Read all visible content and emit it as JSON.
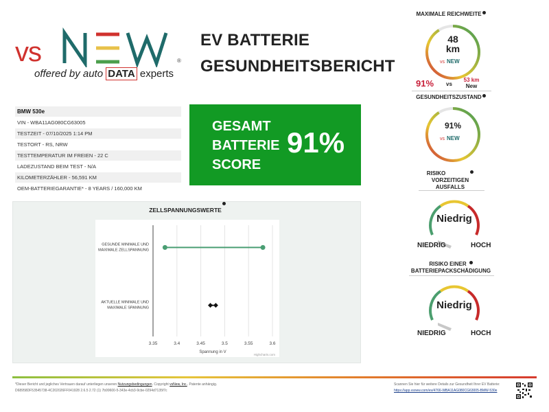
{
  "logo": {
    "vs": "vs",
    "tagline_prefix": "offered by auto",
    "tagline_data": "DATA",
    "tagline_suffix": "experts",
    "reg": "®",
    "colors": {
      "red": "#d0322e",
      "teal": "#1f6b6a",
      "yellow": "#e8c24a",
      "green": "#4b9e4b"
    }
  },
  "title": {
    "line1": "EV BATTERIE",
    "line2": "GESUNDHEITSBERICHT"
  },
  "vehicle": {
    "model": "BMW 530e",
    "rows": [
      "VIN - WBA11AG080CG63005",
      "TESTZEIT - 07/10/2025 1:14 PM",
      "TESTORT - RS, NRW",
      "TESTTEMPERATUR IM FREIEN - 22 C",
      "LADEZUSTAND BEIM TEST - N/A",
      "KILOMETERZÄHLER - 56,591 KM",
      "OEM-BATTERIEGARANTIE* - 8 YEARS / 160,000 KM"
    ]
  },
  "score": {
    "line1": "GESAMT",
    "line2": "BATTERIE",
    "line3": "SCORE",
    "value": "91%",
    "color": "#129a24"
  },
  "cell_voltage": {
    "title": "ZELLSPANNUNGSWERTE",
    "credit": "Highcharts.com"
  },
  "chart_data": {
    "type": "dumbbell",
    "title": "ZELLSPANNUNGSWERTE",
    "xlabel": "Spannung in V",
    "ylabel": "",
    "xlim": [
      3.35,
      3.6
    ],
    "x_ticks": [
      "3.35",
      "3.4",
      "3.45",
      "3.5",
      "3.55",
      "3.6"
    ],
    "categories": [
      "GESUNDE MINIMALE UND MAXIMALE ZELLSPANNUNG",
      "AKTUELLE MINIMALE UND MAXIMALE SPANNUNG"
    ],
    "category_lines": [
      [
        "GESUNDE MINIMALE UND",
        "MAXIMALE ZELLSPANNUNG"
      ],
      [
        "AKTUELLE MINIMALE UND",
        "MAXIMALE SPANNUNG"
      ]
    ],
    "series": [
      {
        "low": 3.375,
        "high": 3.58
      },
      {
        "low": 3.47,
        "high": 3.477
      }
    ],
    "colors": [
      "#4a9e73",
      "#111111"
    ],
    "grid": true
  },
  "range": {
    "title": "MAXIMALE REICHWEITE",
    "km_value": "48",
    "km_unit": "km",
    "pct": "91%",
    "vs": "vs",
    "new_km": "53 km",
    "new_label": "New",
    "fraction": 0.91
  },
  "health": {
    "title": "GESUNDHEITSZUSTAND",
    "value": "91%",
    "fraction": 0.91
  },
  "risk_early": {
    "title_line1": "RISIKO",
    "title_line2": "VORZEITIGEN",
    "title_line3": "AUSFALLS",
    "value": "Niedrig",
    "low": "NIEDRIG",
    "high": "HOCH"
  },
  "risk_pack": {
    "title_line1": "RISIKO EINER",
    "title_line2": "BATTERIEPACKSCHÄDIGUNG",
    "value": "Niedrig",
    "low": "NIEDRIG",
    "high": "HOCH"
  },
  "footer": {
    "disclaimer_pre": "*Dieser Bericht und jegliches Vertrauen darauf unterliegen unseren",
    "terms": "Nutzungsbedingungen",
    "copyright_pre": ". Copyright",
    "company": "vsNew, Inc.",
    "patent": ". Patente anhängig.",
    "code": "D68958DF53545738-4C202026FF041928 2.6.5 2.72 (1) 7b99600-5-343e-4cb3-9cbe-0294d7135f7c",
    "scan_text": "Scannen Sie hier für weitere Details zur Gesundheit Ihrer EV Batterie:",
    "scan_url": "https://app.vsnew.com/ev/4766-WBA11AG080CG63005-BMW-530e"
  }
}
